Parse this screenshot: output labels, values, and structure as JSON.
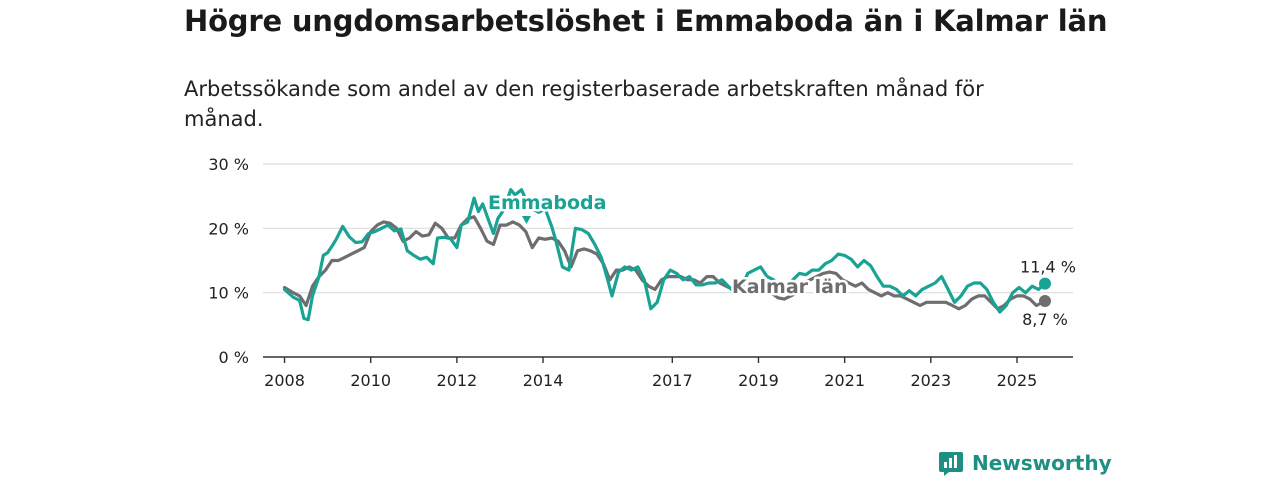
{
  "title": "Högre ungdomsarbetslöshet i Emmaboda än i Kalmar län",
  "subtitle": "Arbetssökande som andel av den registerbaserade arbetskraften månad för månad.",
  "brand": "Newsworthy",
  "colors": {
    "emmaboda": "#18a394",
    "kalmar": "#6e6d70",
    "grid": "#dddddd",
    "axis": "#333333",
    "brand": "#1f8f83"
  },
  "chart_data": {
    "type": "line",
    "title": "Högre ungdomsarbetslöshet i Emmaboda än i Kalmar län",
    "ylabel": "",
    "xlabel": "",
    "ylim": [
      0,
      30
    ],
    "xlim": [
      2007.5,
      2026.3
    ],
    "y_ticks": [
      0,
      10,
      20,
      30
    ],
    "y_tick_labels": [
      "0 %",
      "10 %",
      "20 %",
      "30 %"
    ],
    "x_ticks": [
      2008,
      2010,
      2012,
      2014,
      2017,
      2019,
      2021,
      2023,
      2025
    ],
    "x_tick_labels": [
      "2008",
      "2010",
      "2012",
      "2014",
      "2017",
      "2019",
      "2021",
      "2023",
      "2025"
    ],
    "grid": true,
    "series": [
      {
        "name": "Emmaboda",
        "label": "Emmaboda",
        "end_label": "11,4 %",
        "points": [
          [
            2008.0,
            10.5
          ],
          [
            2008.2,
            9.3
          ],
          [
            2008.35,
            8.8
          ],
          [
            2008.45,
            6.0
          ],
          [
            2008.55,
            5.8
          ],
          [
            2008.65,
            9.5
          ],
          [
            2008.8,
            12.5
          ],
          [
            2008.9,
            15.8
          ],
          [
            2009.0,
            16.2
          ],
          [
            2009.1,
            17.2
          ],
          [
            2009.2,
            18.3
          ],
          [
            2009.35,
            20.3
          ],
          [
            2009.5,
            18.7
          ],
          [
            2009.65,
            17.8
          ],
          [
            2009.8,
            17.9
          ],
          [
            2009.95,
            19.2
          ],
          [
            2010.1,
            19.5
          ],
          [
            2010.25,
            20.0
          ],
          [
            2010.4,
            20.5
          ],
          [
            2010.55,
            19.6
          ],
          [
            2010.7,
            19.9
          ],
          [
            2010.85,
            16.5
          ],
          [
            2011.0,
            15.8
          ],
          [
            2011.15,
            15.2
          ],
          [
            2011.3,
            15.5
          ],
          [
            2011.45,
            14.5
          ],
          [
            2011.55,
            18.5
          ],
          [
            2011.7,
            18.6
          ],
          [
            2011.85,
            18.4
          ],
          [
            2012.0,
            17.0
          ],
          [
            2012.1,
            20.5
          ],
          [
            2012.25,
            21.0
          ],
          [
            2012.4,
            24.7
          ],
          [
            2012.5,
            22.6
          ],
          [
            2012.6,
            23.8
          ],
          [
            2012.75,
            21.0
          ],
          [
            2012.85,
            19.2
          ],
          [
            2012.95,
            21.5
          ],
          [
            2013.1,
            23.0
          ],
          [
            2013.25,
            26.0
          ],
          [
            2013.35,
            25.2
          ],
          [
            2013.5,
            26.0
          ],
          [
            2013.6,
            24.5
          ],
          [
            2013.75,
            23.0
          ],
          [
            2013.9,
            22.5
          ],
          [
            2014.05,
            23.0
          ],
          [
            2014.2,
            20.3
          ],
          [
            2014.3,
            18.0
          ],
          [
            2014.45,
            14.0
          ],
          [
            2014.6,
            13.5
          ],
          [
            2014.75,
            20.0
          ],
          [
            2014.9,
            19.8
          ],
          [
            2015.05,
            19.2
          ],
          [
            2015.2,
            17.5
          ],
          [
            2015.35,
            15.5
          ],
          [
            2015.5,
            12.0
          ],
          [
            2015.6,
            9.5
          ],
          [
            2015.75,
            13.2
          ],
          [
            2015.9,
            14.0
          ],
          [
            2016.05,
            13.5
          ],
          [
            2016.2,
            14.0
          ],
          [
            2016.35,
            12.0
          ],
          [
            2016.5,
            7.5
          ],
          [
            2016.65,
            8.5
          ],
          [
            2016.8,
            12.0
          ],
          [
            2016.95,
            13.5
          ],
          [
            2017.1,
            13.0
          ],
          [
            2017.25,
            12.0
          ],
          [
            2017.4,
            12.5
          ],
          [
            2017.55,
            11.2
          ],
          [
            2017.7,
            11.2
          ],
          [
            2017.85,
            11.5
          ],
          [
            2018.0,
            11.5
          ],
          [
            2018.15,
            12.0
          ],
          [
            2018.3,
            11.0
          ],
          [
            2018.45,
            10.0
          ],
          [
            2018.6,
            10.5
          ],
          [
            2018.75,
            13.0
          ],
          [
            2018.9,
            13.5
          ],
          [
            2019.05,
            14.0
          ],
          [
            2019.2,
            12.5
          ],
          [
            2019.35,
            12.0
          ],
          [
            2019.5,
            10.5
          ],
          [
            2019.65,
            10.8
          ],
          [
            2019.8,
            12.0
          ],
          [
            2019.95,
            13.0
          ],
          [
            2020.1,
            12.8
          ],
          [
            2020.25,
            13.5
          ],
          [
            2020.4,
            13.5
          ],
          [
            2020.55,
            14.5
          ],
          [
            2020.7,
            15.0
          ],
          [
            2020.85,
            16.0
          ],
          [
            2021.0,
            15.8
          ],
          [
            2021.15,
            15.2
          ],
          [
            2021.3,
            14.0
          ],
          [
            2021.45,
            15.0
          ],
          [
            2021.6,
            14.2
          ],
          [
            2021.75,
            12.5
          ],
          [
            2021.9,
            11.0
          ],
          [
            2022.05,
            11.0
          ],
          [
            2022.2,
            10.5
          ],
          [
            2022.35,
            9.5
          ],
          [
            2022.5,
            10.3
          ],
          [
            2022.65,
            9.5
          ],
          [
            2022.8,
            10.5
          ],
          [
            2022.95,
            11.0
          ],
          [
            2023.1,
            11.5
          ],
          [
            2023.25,
            12.5
          ],
          [
            2023.4,
            10.5
          ],
          [
            2023.55,
            8.5
          ],
          [
            2023.7,
            9.5
          ],
          [
            2023.85,
            11.0
          ],
          [
            2024.0,
            11.5
          ],
          [
            2024.15,
            11.5
          ],
          [
            2024.3,
            10.5
          ],
          [
            2024.45,
            8.5
          ],
          [
            2024.6,
            7.0
          ],
          [
            2024.75,
            8.0
          ],
          [
            2024.9,
            10.0
          ],
          [
            2025.05,
            10.8
          ],
          [
            2025.2,
            10.0
          ],
          [
            2025.35,
            11.0
          ],
          [
            2025.5,
            10.5
          ],
          [
            2025.65,
            11.4
          ]
        ]
      },
      {
        "name": "Kalmar län",
        "label": "Kalmar län",
        "end_label": "8,7 %",
        "points": [
          [
            2008.0,
            10.8
          ],
          [
            2008.2,
            10.0
          ],
          [
            2008.35,
            9.5
          ],
          [
            2008.5,
            8.0
          ],
          [
            2008.65,
            11.0
          ],
          [
            2008.8,
            12.5
          ],
          [
            2008.95,
            13.5
          ],
          [
            2009.1,
            15.0
          ],
          [
            2009.25,
            15.0
          ],
          [
            2009.4,
            15.5
          ],
          [
            2009.55,
            16.0
          ],
          [
            2009.7,
            16.5
          ],
          [
            2009.85,
            17.0
          ],
          [
            2010.0,
            19.5
          ],
          [
            2010.15,
            20.5
          ],
          [
            2010.3,
            21.0
          ],
          [
            2010.45,
            20.8
          ],
          [
            2010.6,
            20.0
          ],
          [
            2010.75,
            18.0
          ],
          [
            2010.9,
            18.5
          ],
          [
            2011.05,
            19.5
          ],
          [
            2011.2,
            18.8
          ],
          [
            2011.35,
            19.0
          ],
          [
            2011.5,
            20.8
          ],
          [
            2011.65,
            20.0
          ],
          [
            2011.8,
            18.5
          ],
          [
            2011.95,
            18.5
          ],
          [
            2012.1,
            20.5
          ],
          [
            2012.25,
            21.5
          ],
          [
            2012.4,
            21.8
          ],
          [
            2012.55,
            20.0
          ],
          [
            2012.7,
            18.0
          ],
          [
            2012.85,
            17.5
          ],
          [
            2013.0,
            20.5
          ],
          [
            2013.15,
            20.5
          ],
          [
            2013.3,
            21.0
          ],
          [
            2013.45,
            20.5
          ],
          [
            2013.6,
            19.5
          ],
          [
            2013.75,
            17.0
          ],
          [
            2013.9,
            18.5
          ],
          [
            2014.05,
            18.3
          ],
          [
            2014.2,
            18.5
          ],
          [
            2014.35,
            18.0
          ],
          [
            2014.5,
            16.5
          ],
          [
            2014.65,
            14.0
          ],
          [
            2014.8,
            16.5
          ],
          [
            2014.95,
            16.8
          ],
          [
            2015.1,
            16.5
          ],
          [
            2015.25,
            16.0
          ],
          [
            2015.4,
            14.5
          ],
          [
            2015.55,
            12.0
          ],
          [
            2015.7,
            13.5
          ],
          [
            2015.85,
            13.5
          ],
          [
            2016.0,
            14.0
          ],
          [
            2016.15,
            13.5
          ],
          [
            2016.3,
            12.0
          ],
          [
            2016.45,
            11.0
          ],
          [
            2016.6,
            10.5
          ],
          [
            2016.75,
            12.0
          ],
          [
            2016.9,
            12.5
          ],
          [
            2017.05,
            12.5
          ],
          [
            2017.2,
            12.5
          ],
          [
            2017.35,
            12.0
          ],
          [
            2017.5,
            12.0
          ],
          [
            2017.65,
            11.5
          ],
          [
            2017.8,
            12.5
          ],
          [
            2017.95,
            12.5
          ],
          [
            2018.1,
            11.5
          ],
          [
            2018.25,
            11.0
          ],
          [
            2018.4,
            10.5
          ],
          [
            2018.55,
            10.0
          ],
          [
            2018.7,
            10.5
          ],
          [
            2018.85,
            10.5
          ],
          [
            2019.0,
            10.8
          ],
          [
            2019.15,
            10.5
          ],
          [
            2019.3,
            10.0
          ],
          [
            2019.45,
            9.2
          ],
          [
            2019.6,
            9.0
          ],
          [
            2019.75,
            9.5
          ],
          [
            2019.9,
            10.0
          ],
          [
            2020.05,
            11.5
          ],
          [
            2020.2,
            12.0
          ],
          [
            2020.35,
            12.5
          ],
          [
            2020.5,
            13.0
          ],
          [
            2020.65,
            13.2
          ],
          [
            2020.8,
            13.0
          ],
          [
            2020.95,
            12.0
          ],
          [
            2021.1,
            11.5
          ],
          [
            2021.25,
            11.0
          ],
          [
            2021.4,
            11.5
          ],
          [
            2021.55,
            10.5
          ],
          [
            2021.7,
            10.0
          ],
          [
            2021.85,
            9.5
          ],
          [
            2022.0,
            10.0
          ],
          [
            2022.15,
            9.5
          ],
          [
            2022.3,
            9.5
          ],
          [
            2022.45,
            9.0
          ],
          [
            2022.6,
            8.5
          ],
          [
            2022.75,
            8.0
          ],
          [
            2022.9,
            8.5
          ],
          [
            2023.05,
            8.5
          ],
          [
            2023.2,
            8.5
          ],
          [
            2023.35,
            8.5
          ],
          [
            2023.5,
            8.0
          ],
          [
            2023.65,
            7.5
          ],
          [
            2023.8,
            8.0
          ],
          [
            2023.95,
            9.0
          ],
          [
            2024.1,
            9.5
          ],
          [
            2024.25,
            9.5
          ],
          [
            2024.4,
            8.5
          ],
          [
            2024.55,
            7.5
          ],
          [
            2024.7,
            8.0
          ],
          [
            2024.85,
            9.0
          ],
          [
            2025.0,
            9.5
          ],
          [
            2025.15,
            9.5
          ],
          [
            2025.3,
            9.0
          ],
          [
            2025.45,
            8.0
          ],
          [
            2025.65,
            8.7
          ]
        ]
      }
    ]
  }
}
